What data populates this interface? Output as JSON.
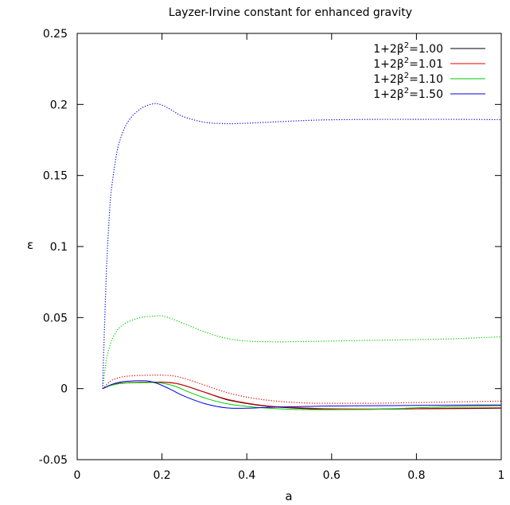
{
  "chart_data": {
    "type": "line",
    "title": "Layzer-Irvine constant for enhanced gravity",
    "xlabel": "a",
    "ylabel": "ε",
    "xlim": [
      0,
      1
    ],
    "ylim": [
      -0.05,
      0.25
    ],
    "xticks": [
      0,
      0.2,
      0.4,
      0.6,
      0.8,
      1
    ],
    "xtick_labels": [
      "0",
      "0.2",
      "0.4",
      "0.6",
      "0.8",
      "1"
    ],
    "yticks": [
      -0.05,
      0,
      0.05,
      0.1,
      0.15,
      0.2,
      0.25
    ],
    "ytick_labels": [
      "-0.05",
      "0",
      "0.05",
      "0.1",
      "0.15",
      "0.2",
      "0.25"
    ],
    "grid": false,
    "legend_position": "top-right",
    "legend_title_prefix": "1+2β",
    "series": [
      {
        "name": "1+2β²=1.00",
        "legend_value": "=1.00",
        "color": "#000000",
        "style": "solid",
        "x": [
          0.06,
          0.08,
          0.1,
          0.12,
          0.15,
          0.2,
          0.23,
          0.26,
          0.3,
          0.35,
          0.4,
          0.45,
          0.5,
          0.55,
          0.6,
          0.7,
          0.8,
          0.9,
          1.0
        ],
        "y": [
          0.0,
          0.0025,
          0.0038,
          0.0042,
          0.0044,
          0.0045,
          0.0038,
          0.0015,
          -0.0025,
          -0.0075,
          -0.0105,
          -0.0125,
          -0.0135,
          -0.0142,
          -0.0145,
          -0.0145,
          -0.0142,
          -0.014,
          -0.0138
        ]
      },
      {
        "name": "1+2β²=1.01",
        "legend_value": "=1.01",
        "color": "#e00000",
        "style": "solid",
        "x": [
          0.06,
          0.08,
          0.1,
          0.12,
          0.15,
          0.2,
          0.23,
          0.26,
          0.3,
          0.35,
          0.4,
          0.45,
          0.5,
          0.55,
          0.6,
          0.7,
          0.8,
          0.9,
          1.0
        ],
        "y": [
          0.0,
          0.0025,
          0.0038,
          0.0042,
          0.0044,
          0.0046,
          0.0039,
          0.0016,
          -0.0024,
          -0.0072,
          -0.0102,
          -0.0122,
          -0.0132,
          -0.0138,
          -0.0142,
          -0.0143,
          -0.014,
          -0.0137,
          -0.0135
        ]
      },
      {
        "name": "1+2β²=1.10",
        "legend_value": "=1.10",
        "color": "#00cc00",
        "style": "solid",
        "x": [
          0.06,
          0.08,
          0.1,
          0.12,
          0.15,
          0.18,
          0.2,
          0.23,
          0.26,
          0.3,
          0.35,
          0.4,
          0.45,
          0.5,
          0.55,
          0.6,
          0.7,
          0.8,
          0.9,
          1.0
        ],
        "y": [
          0.0,
          0.0022,
          0.0035,
          0.004,
          0.0042,
          0.0043,
          0.0038,
          0.0018,
          -0.002,
          -0.0065,
          -0.0105,
          -0.0125,
          -0.0138,
          -0.0145,
          -0.0148,
          -0.0148,
          -0.0145,
          -0.0135,
          -0.0125,
          -0.012
        ]
      },
      {
        "name": "1+2β²=1.50",
        "legend_value": "=1.50",
        "color": "#0000e0",
        "style": "solid",
        "x": [
          0.06,
          0.08,
          0.1,
          0.12,
          0.15,
          0.17,
          0.19,
          0.22,
          0.25,
          0.3,
          0.35,
          0.4,
          0.45,
          0.5,
          0.55,
          0.6,
          0.7,
          0.8,
          0.9,
          1.0
        ],
        "y": [
          0.0,
          0.0028,
          0.0045,
          0.0052,
          0.0055,
          0.0052,
          0.0035,
          -0.0005,
          -0.005,
          -0.0105,
          -0.0135,
          -0.0138,
          -0.0132,
          -0.0128,
          -0.0125,
          -0.0122,
          -0.012,
          -0.0118,
          -0.0116,
          -0.0115
        ]
      },
      {
        "color": "#e00000",
        "style": "dotted",
        "x": [
          0.06,
          0.08,
          0.1,
          0.12,
          0.15,
          0.2,
          0.23,
          0.26,
          0.3,
          0.35,
          0.4,
          0.45,
          0.5,
          0.55,
          0.6,
          0.7,
          0.8,
          0.9,
          1.0
        ],
        "y": [
          0.0,
          0.0055,
          0.0078,
          0.0088,
          0.0093,
          0.0095,
          0.0088,
          0.0065,
          0.0025,
          -0.0025,
          -0.006,
          -0.0082,
          -0.0095,
          -0.0102,
          -0.0103,
          -0.0103,
          -0.0098,
          -0.0093,
          -0.0088
        ]
      },
      {
        "color": "#00cc00",
        "style": "dotted",
        "x": [
          0.06,
          0.065,
          0.07,
          0.08,
          0.09,
          0.1,
          0.12,
          0.15,
          0.18,
          0.2,
          0.22,
          0.25,
          0.3,
          0.35,
          0.4,
          0.45,
          0.5,
          0.55,
          0.6,
          0.7,
          0.8,
          0.9,
          1.0
        ],
        "y": [
          0.0,
          0.012,
          0.022,
          0.033,
          0.039,
          0.043,
          0.047,
          0.05,
          0.051,
          0.0512,
          0.0495,
          0.046,
          0.04,
          0.0355,
          0.0335,
          0.033,
          0.033,
          0.0332,
          0.0335,
          0.034,
          0.0345,
          0.0352,
          0.0365
        ]
      },
      {
        "color": "#0000e0",
        "style": "dotted",
        "x": [
          0.06,
          0.063,
          0.066,
          0.07,
          0.075,
          0.08,
          0.09,
          0.1,
          0.12,
          0.15,
          0.18,
          0.2,
          0.22,
          0.25,
          0.3,
          0.35,
          0.4,
          0.45,
          0.5,
          0.55,
          0.6,
          0.7,
          0.8,
          0.9,
          1.0
        ],
        "y": [
          0.0,
          0.03,
          0.058,
          0.09,
          0.118,
          0.138,
          0.16,
          0.174,
          0.188,
          0.197,
          0.2005,
          0.1995,
          0.1965,
          0.1915,
          0.1875,
          0.1865,
          0.1868,
          0.1875,
          0.1882,
          0.1888,
          0.1892,
          0.1895,
          0.1895,
          0.1895,
          0.1893
        ]
      }
    ]
  }
}
